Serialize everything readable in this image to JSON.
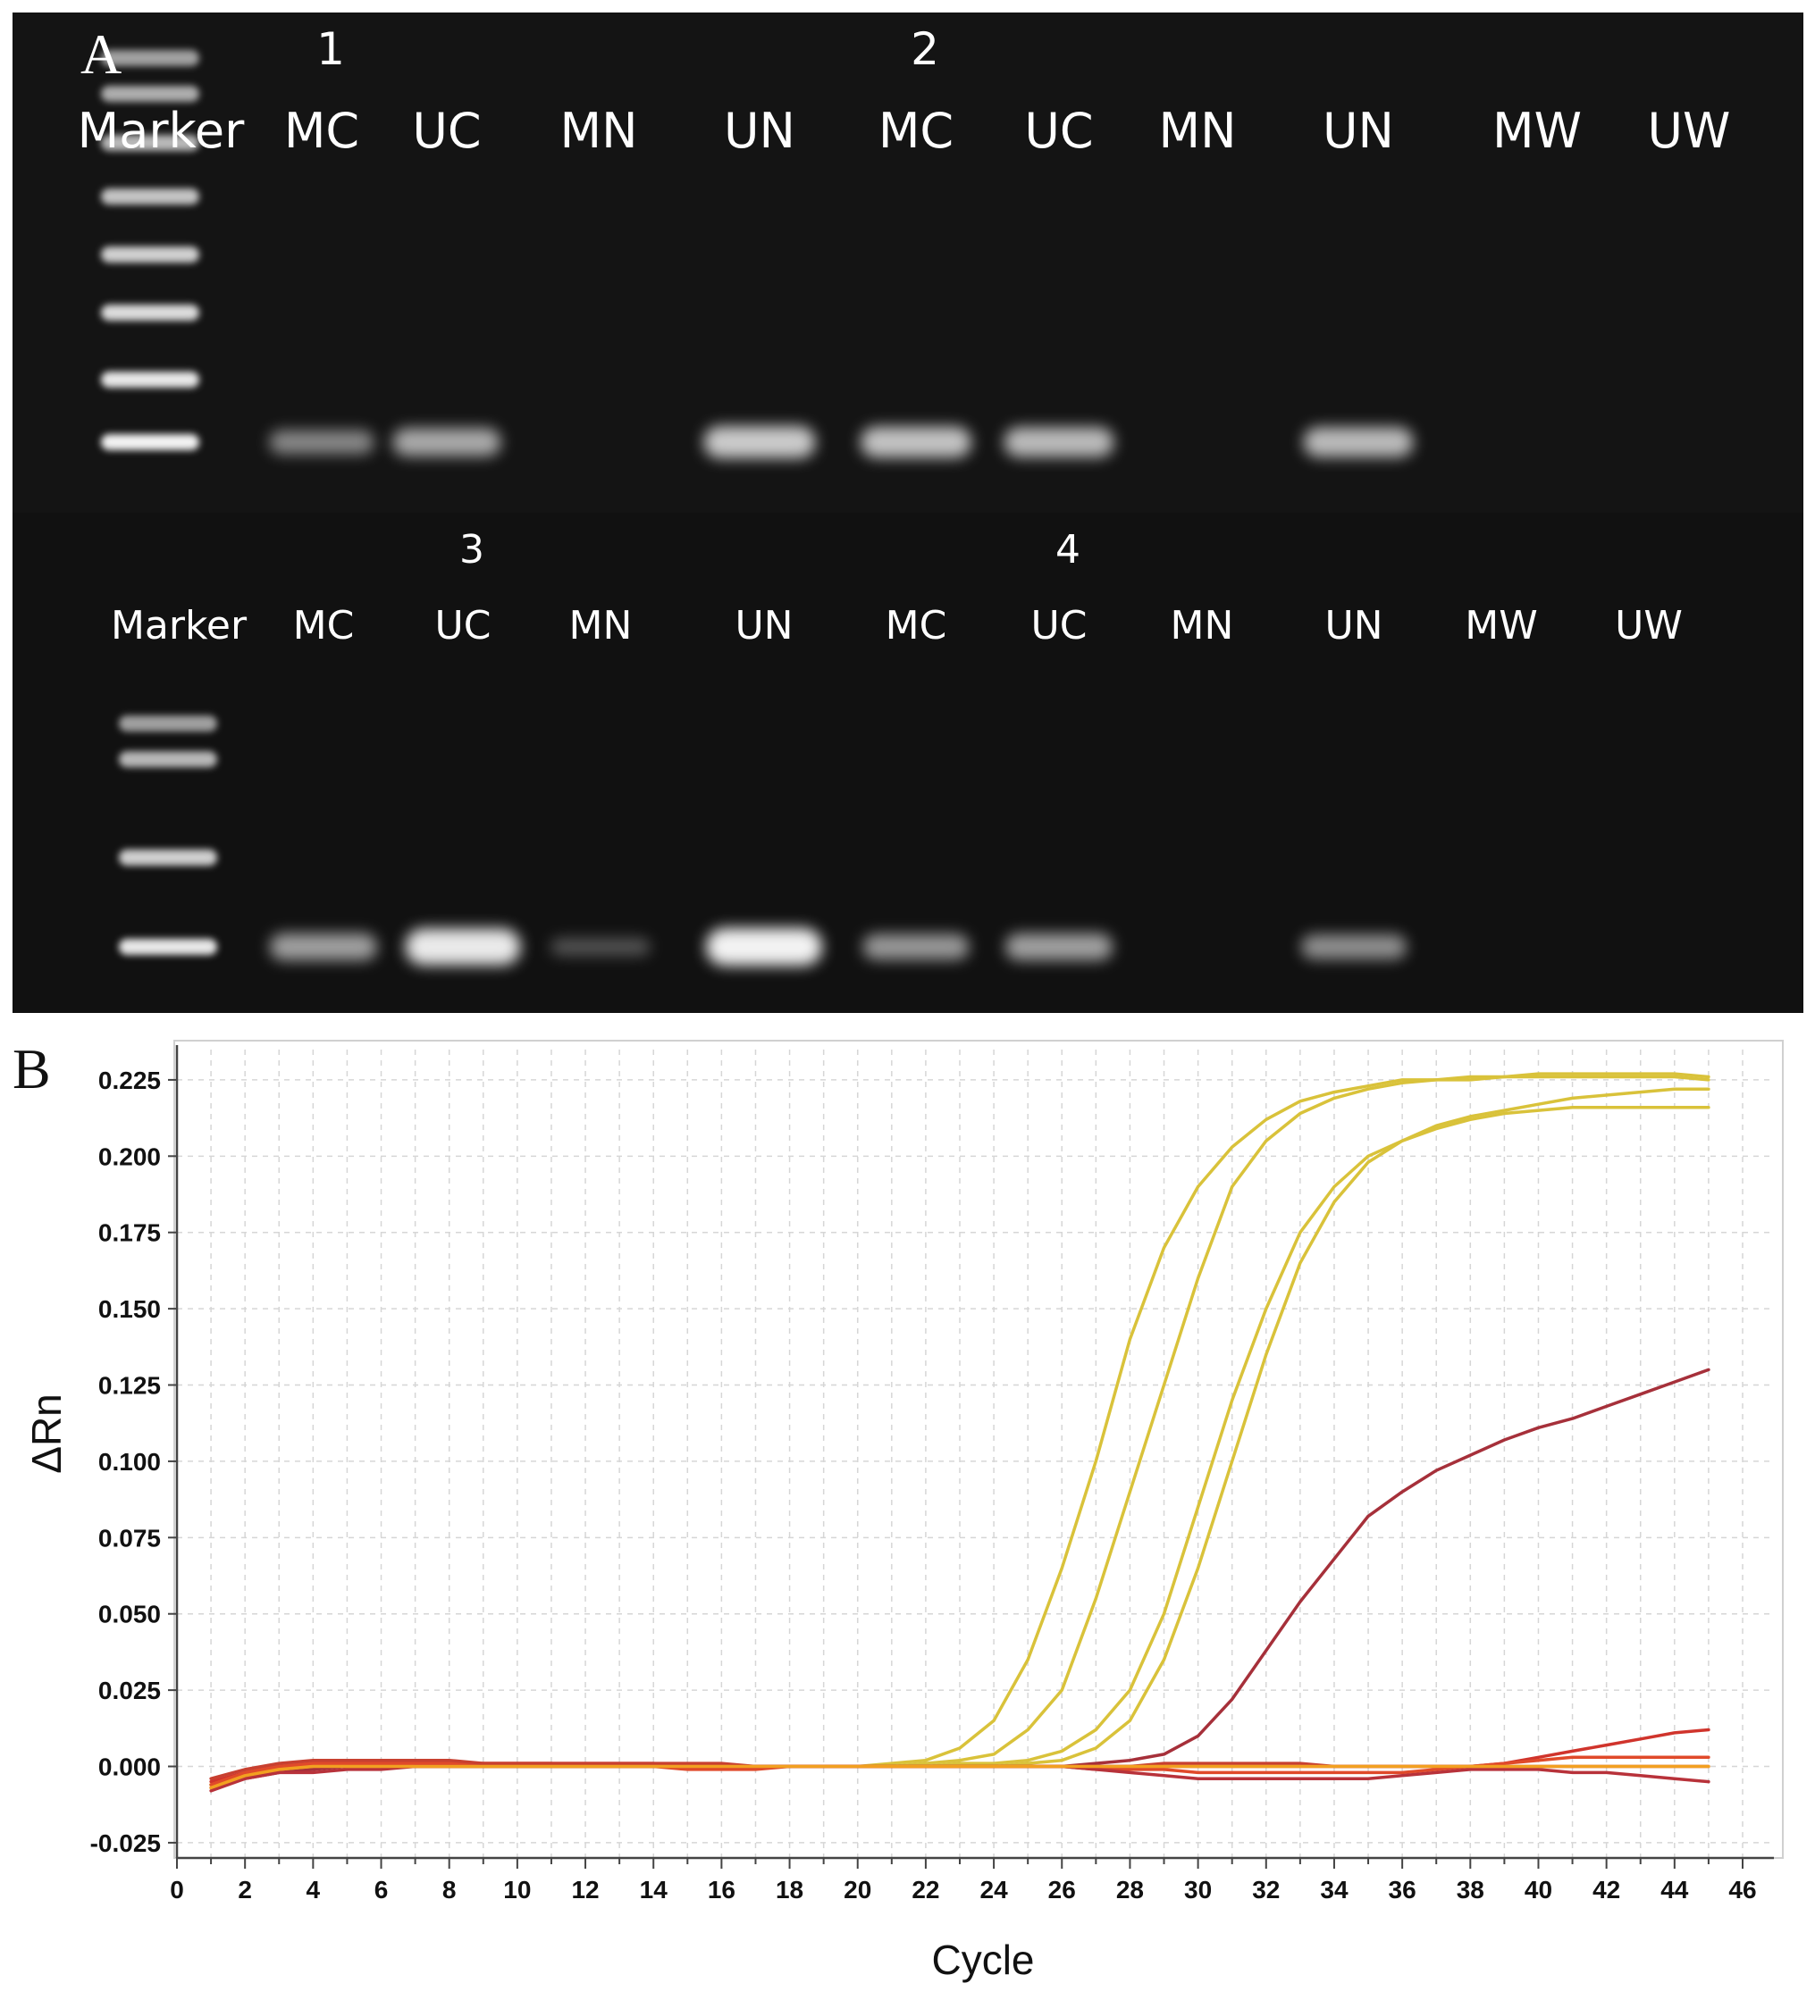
{
  "panel_a": {
    "letter": "A",
    "gels": [
      {
        "groups": [
          {
            "label": "1",
            "lane": 1
          },
          {
            "label": "2",
            "lane": 5
          }
        ],
        "lanes": [
          "Marker",
          "MC",
          "UC",
          "MN",
          "UN",
          "MC",
          "UC",
          "MN",
          "UN",
          "MW",
          "UW"
        ],
        "band_intensity": [
          1.0,
          0.35,
          0.55,
          0.0,
          0.75,
          0.7,
          0.65,
          0.0,
          0.65,
          0.0,
          0.0
        ]
      },
      {
        "groups": [
          {
            "label": "3",
            "lane": 2
          },
          {
            "label": "4",
            "lane": 6
          }
        ],
        "lanes": [
          "Marker",
          "MC",
          "UC",
          "MN",
          "UN",
          "MC",
          "UC",
          "MN",
          "UN",
          "MW",
          "UW"
        ],
        "band_intensity": [
          0.6,
          0.5,
          0.95,
          0.05,
          1.0,
          0.45,
          0.5,
          0.0,
          0.4,
          0.0,
          0.0
        ]
      }
    ]
  },
  "panel_b": {
    "letter": "B",
    "chart_data": {
      "type": "line",
      "title": "",
      "xlabel": "Cycle",
      "ylabel": "ΔRn",
      "xlim": [
        0,
        46
      ],
      "ylim": [
        -0.03,
        0.232
      ],
      "x_ticks": [
        "0",
        "2",
        "4",
        "6",
        "8",
        "10",
        "12",
        "14",
        "16",
        "18",
        "20",
        "22",
        "24",
        "26",
        "28",
        "30",
        "32",
        "34",
        "36",
        "38",
        "40",
        "42",
        "44",
        "46"
      ],
      "y_ticks": [
        "0.225",
        "0.200",
        "0.175",
        "0.150",
        "0.125",
        "0.100",
        "0.075",
        "0.050",
        "0.025",
        "0.000",
        "-0.025"
      ],
      "grid": true,
      "x": [
        1,
        2,
        3,
        4,
        5,
        6,
        7,
        8,
        9,
        10,
        11,
        12,
        13,
        14,
        15,
        16,
        17,
        18,
        19,
        20,
        21,
        22,
        23,
        24,
        25,
        26,
        27,
        28,
        29,
        30,
        31,
        32,
        33,
        34,
        35,
        36,
        37,
        38,
        39,
        40,
        41,
        42,
        43,
        44,
        45
      ],
      "series": [
        {
          "color": "#d9c23a",
          "values": [
            -0.006,
            -0.003,
            -0.001,
            0,
            0,
            0,
            0,
            0,
            0,
            0,
            0,
            0,
            0,
            0,
            0,
            0,
            0,
            0,
            0,
            0,
            0.001,
            0.002,
            0.006,
            0.015,
            0.035,
            0.065,
            0.1,
            0.14,
            0.17,
            0.19,
            0.203,
            0.212,
            0.218,
            0.221,
            0.223,
            0.225,
            0.225,
            0.226,
            0.226,
            0.227,
            0.227,
            0.227,
            0.227,
            0.227,
            0.226
          ]
        },
        {
          "color": "#d9c23a",
          "values": [
            -0.006,
            -0.003,
            -0.001,
            0,
            0,
            0,
            0,
            0,
            0,
            0,
            0,
            0,
            0,
            0,
            0,
            0,
            0,
            0,
            0,
            0,
            0,
            0.001,
            0.002,
            0.004,
            0.012,
            0.025,
            0.055,
            0.09,
            0.125,
            0.16,
            0.19,
            0.205,
            0.214,
            0.219,
            0.222,
            0.224,
            0.225,
            0.225,
            0.226,
            0.226,
            0.226,
            0.226,
            0.226,
            0.226,
            0.225
          ]
        },
        {
          "color": "#d9c23a",
          "values": [
            -0.006,
            -0.003,
            -0.001,
            0,
            0,
            0,
            0,
            0,
            0,
            0,
            0,
            0,
            0,
            0,
            0,
            0,
            0,
            0,
            0,
            0,
            0,
            0,
            0.001,
            0.001,
            0.002,
            0.005,
            0.012,
            0.025,
            0.05,
            0.085,
            0.12,
            0.15,
            0.175,
            0.19,
            0.2,
            0.205,
            0.21,
            0.213,
            0.215,
            0.217,
            0.219,
            0.22,
            0.221,
            0.222,
            0.222
          ]
        },
        {
          "color": "#d9c23a",
          "values": [
            -0.006,
            -0.003,
            -0.001,
            0,
            0,
            0,
            0,
            0,
            0,
            0,
            0,
            0,
            0,
            0,
            0,
            0,
            0,
            0,
            0,
            0,
            0,
            0,
            0,
            0,
            0.001,
            0.002,
            0.006,
            0.015,
            0.035,
            0.065,
            0.1,
            0.135,
            0.165,
            0.185,
            0.198,
            0.205,
            0.209,
            0.212,
            0.214,
            0.215,
            0.216,
            0.216,
            0.216,
            0.216,
            0.216
          ]
        },
        {
          "color": "#a6303a",
          "values": [
            -0.007,
            -0.004,
            -0.002,
            -0.001,
            0,
            0,
            0,
            0,
            0,
            0,
            0,
            0,
            0,
            0,
            0,
            0,
            0,
            0,
            0,
            0,
            0,
            0,
            0,
            0,
            0,
            0,
            0.001,
            0.002,
            0.004,
            0.01,
            0.022,
            0.038,
            0.054,
            0.068,
            0.082,
            0.09,
            0.097,
            0.102,
            0.107,
            0.111,
            0.114,
            0.118,
            0.122,
            0.126,
            0.13
          ]
        },
        {
          "color": "#d0342c",
          "values": [
            -0.005,
            -0.002,
            0,
            0.001,
            0.001,
            0.001,
            0.001,
            0.001,
            0.001,
            0.001,
            0.001,
            0.001,
            0.001,
            0.001,
            0,
            0,
            0,
            0,
            0,
            0,
            0,
            0,
            0,
            0,
            0,
            0,
            0,
            0,
            0,
            0,
            0,
            0,
            0,
            0,
            0,
            0,
            0,
            0,
            0.001,
            0.003,
            0.005,
            0.007,
            0.009,
            0.011,
            0.012
          ]
        },
        {
          "color": "#e04a2a",
          "values": [
            -0.006,
            -0.002,
            0,
            0.001,
            0.001,
            0.001,
            0.001,
            0.001,
            0.001,
            0.001,
            0.001,
            0,
            0,
            0,
            -0.001,
            -0.001,
            -0.001,
            0,
            0,
            0,
            0,
            0,
            0,
            0,
            0,
            0,
            -0.001,
            -0.001,
            -0.001,
            -0.002,
            -0.002,
            -0.002,
            -0.002,
            -0.002,
            -0.002,
            -0.002,
            -0.001,
            0,
            0.001,
            0.002,
            0.003,
            0.003,
            0.003,
            0.003,
            0.003
          ]
        },
        {
          "color": "#b8323a",
          "values": [
            -0.008,
            -0.004,
            -0.002,
            -0.002,
            -0.001,
            -0.001,
            0,
            0,
            0,
            0,
            0,
            0,
            0,
            0,
            0,
            0,
            0,
            0,
            0,
            0,
            0,
            0,
            0,
            0,
            0,
            0,
            -0.001,
            -0.002,
            -0.003,
            -0.004,
            -0.004,
            -0.004,
            -0.004,
            -0.004,
            -0.004,
            -0.003,
            -0.002,
            -0.001,
            -0.001,
            -0.001,
            -0.002,
            -0.002,
            -0.003,
            -0.004,
            -0.005
          ]
        },
        {
          "color": "#c84030",
          "values": [
            -0.004,
            -0.001,
            0.001,
            0.002,
            0.002,
            0.002,
            0.002,
            0.002,
            0.001,
            0.001,
            0.001,
            0.001,
            0.001,
            0.001,
            0.001,
            0.001,
            0,
            0,
            0,
            0,
            0,
            0,
            0,
            0,
            0,
            0,
            0,
            0,
            0.001,
            0.001,
            0.001,
            0.001,
            0.001,
            0,
            0,
            0,
            0,
            0,
            0,
            0,
            0,
            0,
            0,
            0,
            0
          ]
        },
        {
          "color": "#f2a020",
          "values": [
            -0.007,
            -0.003,
            -0.001,
            0,
            0,
            0,
            0,
            0,
            0,
            0,
            0,
            0,
            0,
            0,
            0,
            0,
            0,
            0,
            0,
            0,
            0,
            0,
            0,
            0,
            0,
            0,
            0,
            0,
            0,
            0,
            0,
            0,
            0,
            0,
            0,
            0,
            0,
            0,
            0,
            0,
            0,
            0,
            0,
            0,
            0
          ]
        }
      ]
    }
  }
}
